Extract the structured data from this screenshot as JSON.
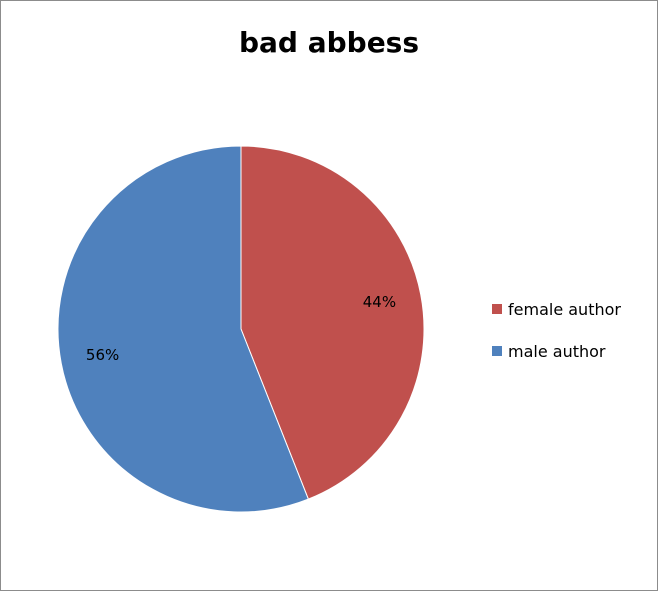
{
  "chart_data": {
    "type": "pie",
    "title": "bad abbess",
    "categories": [
      "female author",
      "male author"
    ],
    "values": [
      44,
      56
    ],
    "labels": [
      "44%",
      "56%"
    ],
    "colors": [
      "#c0504d",
      "#4f81bd"
    ],
    "start": "12 o'clock",
    "direction": "clockwise",
    "legend_position": "right"
  }
}
